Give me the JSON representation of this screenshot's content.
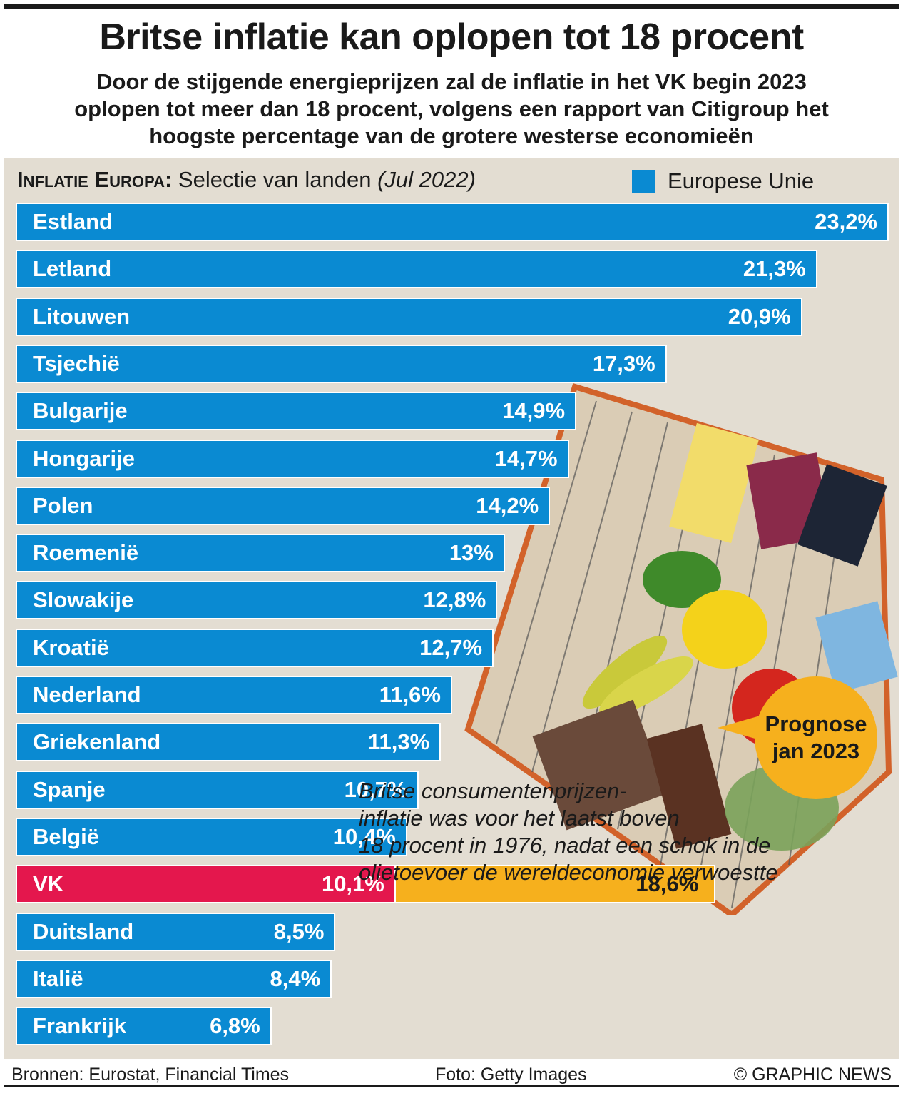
{
  "header": {
    "title": "Britse inflatie kan oplopen tot 18 procent",
    "subtitle": "Door de stijgende energieprijzen zal de inflatie   in het VK begin 2023\noplopen tot meer dan 18 procent, volgens een rapport van Citigroup het\nhoogste percentage van de grotere westerse economieën"
  },
  "panel": {
    "header_strong": "Inflatie Europa:",
    "header_text": " Selectie van landen ",
    "header_em": "(Jul 2022)"
  },
  "legend": {
    "label": "Europese Unie"
  },
  "colors": {
    "eu": "#0a8ad2",
    "uk": "#e4174d",
    "forecast": "#f6b01d",
    "background": "#e3ddd2"
  },
  "chart_data": {
    "type": "bar",
    "orientation": "horizontal",
    "title": "Inflatie Europa: Selectie van landen (Jul 2022)",
    "unit": "%",
    "xlim": [
      0,
      23.2
    ],
    "categories": [
      "Estland",
      "Letland",
      "Litouwen",
      "Tsjechië",
      "Bulgarije",
      "Hongarije",
      "Polen",
      "Roemenië",
      "Slowakije",
      "Kroatië",
      "Nederland",
      "Griekenland",
      "Spanje",
      "België",
      "VK",
      "Duitsland",
      "Italië",
      "Frankrijk"
    ],
    "series": [
      {
        "name": "Jul 2022",
        "values": [
          23.2,
          21.3,
          20.9,
          17.3,
          14.9,
          14.7,
          14.2,
          13,
          12.8,
          12.7,
          11.6,
          11.3,
          10.7,
          10.4,
          10.1,
          8.5,
          8.4,
          6.8
        ],
        "labels": [
          "23,2%",
          "21,3%",
          "20,9%",
          "17,3%",
          "14,9%",
          "14,7%",
          "14,2%",
          "13%",
          "12,8%",
          "12,7%",
          "11,6%",
          "11,3%",
          "10,7%",
          "10,4%",
          "10,1%",
          "8,5%",
          "8,4%",
          "6,8%"
        ],
        "groups": [
          "eu",
          "eu",
          "eu",
          "eu",
          "eu",
          "eu",
          "eu",
          "eu",
          "eu",
          "eu",
          "eu",
          "eu",
          "eu",
          "eu",
          "uk",
          "eu",
          "eu",
          "eu"
        ]
      },
      {
        "name": "Prognose jan 2023",
        "category": "VK",
        "value": 18.6,
        "label": "18,6%"
      }
    ]
  },
  "callout": {
    "text": "Prognose\njan 2023"
  },
  "note": {
    "text": "Britse consumentenprijzen-\ninflatie was voor het laatst boven\n18 procent in 1976, nadat een schok in de\nolietoevoer de wereldeconomie verwoestte"
  },
  "footer": {
    "sources": "Bronnen: Eurostat, Financial Times",
    "photo": "Foto: Getty Images",
    "credit": "© GRAPHIC NEWS"
  }
}
